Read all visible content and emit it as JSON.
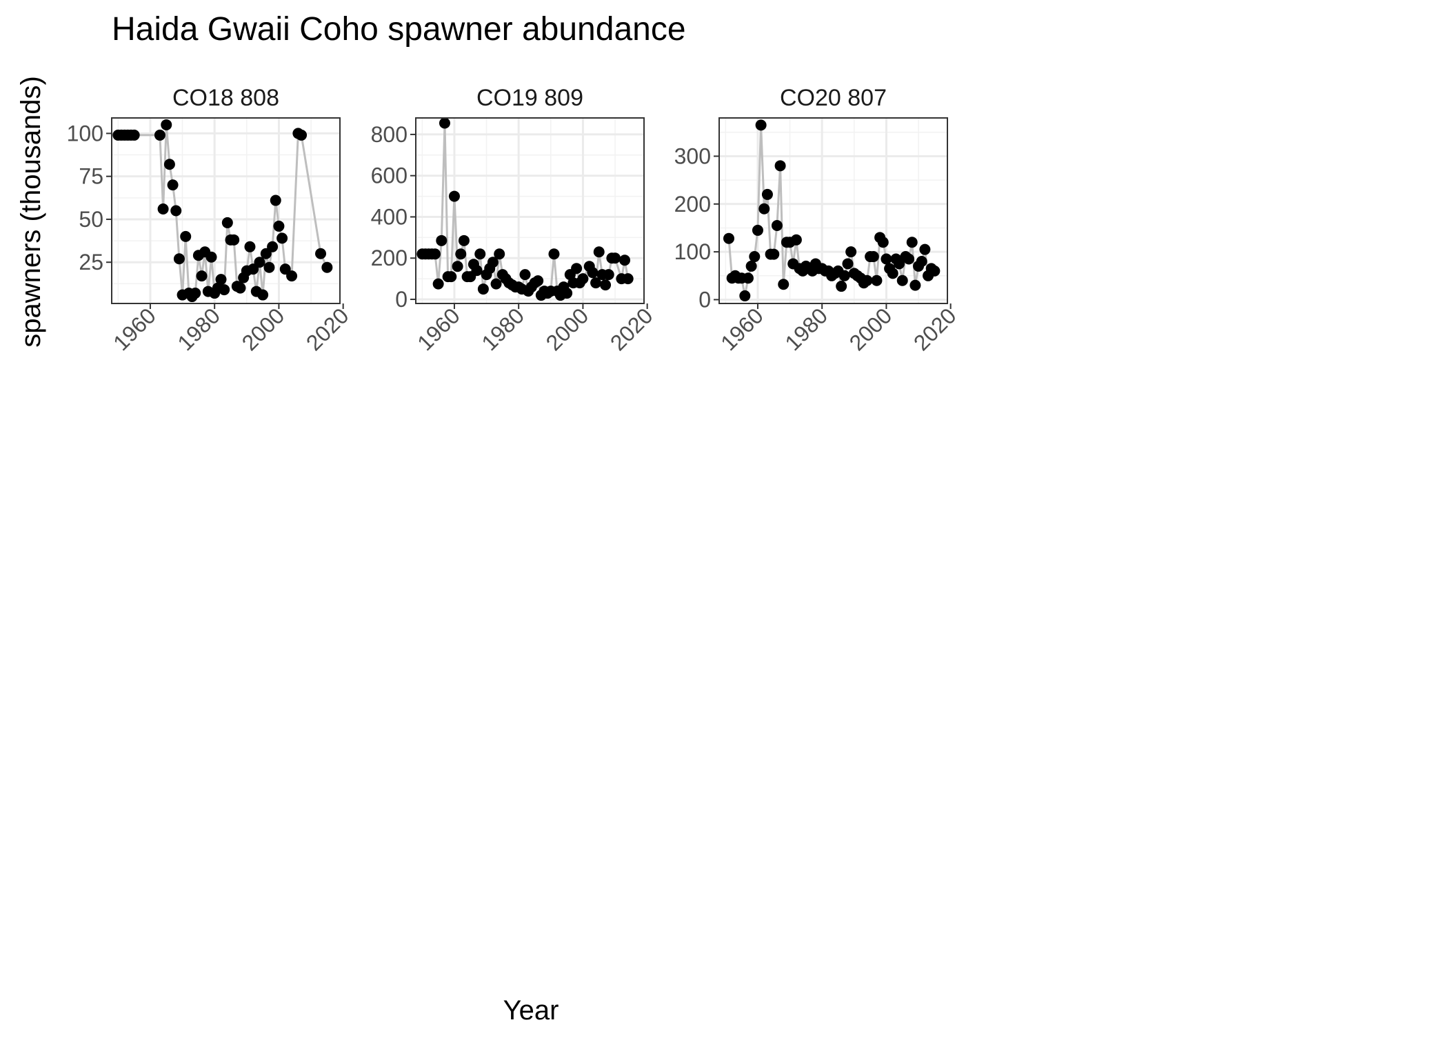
{
  "chart_data": {
    "type": "scatter",
    "title": "Haida Gwaii Coho spawner abundance",
    "xlabel": "Year",
    "ylabel": "spawners (thousands)",
    "grid": true,
    "legend": "none",
    "point_color": "#000000",
    "line_color": "#bebebe",
    "grid_color": "#ebebeb",
    "panels": [
      {
        "strip_label": "CO18 808",
        "xlim": [
          1948,
          2019
        ],
        "ylim": [
          1,
          109
        ],
        "xticks": [
          1960,
          1980,
          2000,
          2020
        ],
        "yticks": [
          25,
          50,
          75,
          100
        ],
        "x": [
          1950,
          1951,
          1952,
          1953,
          1954,
          1955,
          1963,
          1964,
          1965,
          1966,
          1967,
          1968,
          1969,
          1970,
          1971,
          1972,
          1973,
          1974,
          1975,
          1976,
          1977,
          1978,
          1979,
          1980,
          1981,
          1982,
          1983,
          1984,
          1985,
          1986,
          1987,
          1988,
          1989,
          1990,
          1991,
          1992,
          1993,
          1994,
          1995,
          1996,
          1997,
          1998,
          1999,
          2000,
          2001,
          2002,
          2004,
          2006,
          2007,
          2013,
          2015
        ],
        "y": [
          99,
          99,
          99,
          99,
          99,
          99,
          99,
          56,
          105,
          82,
          70,
          55,
          27,
          6,
          40,
          7,
          5,
          7,
          29,
          17,
          31,
          8,
          28,
          7,
          10,
          15,
          9,
          48,
          38,
          38,
          11,
          10,
          16,
          20,
          34,
          21,
          8,
          25,
          6,
          30,
          22,
          34,
          61,
          46,
          39,
          21,
          17,
          100,
          99,
          30,
          22
        ]
      },
      {
        "strip_label": "CO19 809",
        "xlim": [
          1948,
          2019
        ],
        "ylim": [
          -20,
          880
        ],
        "xticks": [
          1960,
          1980,
          2000,
          2020
        ],
        "yticks": [
          0,
          200,
          400,
          600,
          800
        ],
        "x": [
          1950,
          1951,
          1952,
          1953,
          1954,
          1955,
          1956,
          1957,
          1958,
          1959,
          1960,
          1961,
          1962,
          1963,
          1964,
          1965,
          1966,
          1967,
          1968,
          1969,
          1970,
          1971,
          1972,
          1973,
          1974,
          1975,
          1976,
          1977,
          1978,
          1979,
          1980,
          1981,
          1982,
          1983,
          1984,
          1985,
          1986,
          1987,
          1988,
          1989,
          1990,
          1991,
          1992,
          1993,
          1994,
          1995,
          1996,
          1997,
          1998,
          1999,
          2000,
          2002,
          2003,
          2004,
          2005,
          2006,
          2007,
          2008,
          2009,
          2010,
          2012,
          2013,
          2014
        ],
        "y": [
          220,
          220,
          220,
          220,
          220,
          75,
          285,
          855,
          110,
          110,
          500,
          160,
          220,
          285,
          110,
          110,
          170,
          140,
          220,
          50,
          120,
          150,
          180,
          75,
          220,
          120,
          100,
          80,
          70,
          60,
          60,
          50,
          120,
          40,
          60,
          80,
          90,
          20,
          40,
          30,
          40,
          220,
          40,
          20,
          60,
          30,
          120,
          80,
          150,
          80,
          100,
          160,
          130,
          80,
          230,
          120,
          70,
          120,
          200,
          200,
          100,
          190,
          100
        ]
      },
      {
        "strip_label": "CO20 807",
        "xlim": [
          1948,
          2019
        ],
        "ylim": [
          -8,
          380
        ],
        "xticks": [
          1960,
          1980,
          2000,
          2020
        ],
        "yticks": [
          0,
          100,
          200,
          300
        ],
        "x": [
          1951,
          1952,
          1953,
          1954,
          1955,
          1956,
          1957,
          1958,
          1959,
          1960,
          1961,
          1962,
          1963,
          1964,
          1965,
          1966,
          1967,
          1968,
          1969,
          1970,
          1971,
          1972,
          1973,
          1974,
          1975,
          1976,
          1977,
          1978,
          1979,
          1980,
          1981,
          1982,
          1983,
          1984,
          1985,
          1986,
          1987,
          1988,
          1989,
          1990,
          1991,
          1992,
          1993,
          1994,
          1995,
          1996,
          1997,
          1998,
          1999,
          2000,
          2001,
          2002,
          2003,
          2004,
          2005,
          2006,
          2007,
          2008,
          2009,
          2010,
          2011,
          2012,
          2013,
          2014,
          2015
        ],
        "y": [
          128,
          45,
          50,
          45,
          45,
          8,
          45,
          70,
          90,
          145,
          365,
          190,
          220,
          95,
          95,
          155,
          280,
          32,
          120,
          120,
          75,
          125,
          65,
          60,
          70,
          65,
          60,
          75,
          65,
          65,
          60,
          60,
          50,
          55,
          60,
          28,
          50,
          75,
          100,
          55,
          50,
          45,
          35,
          40,
          90,
          90,
          40,
          130,
          120,
          85,
          65,
          55,
          85,
          75,
          40,
          90,
          85,
          120,
          30,
          70,
          80,
          105,
          50,
          65,
          60
        ]
      }
    ]
  }
}
